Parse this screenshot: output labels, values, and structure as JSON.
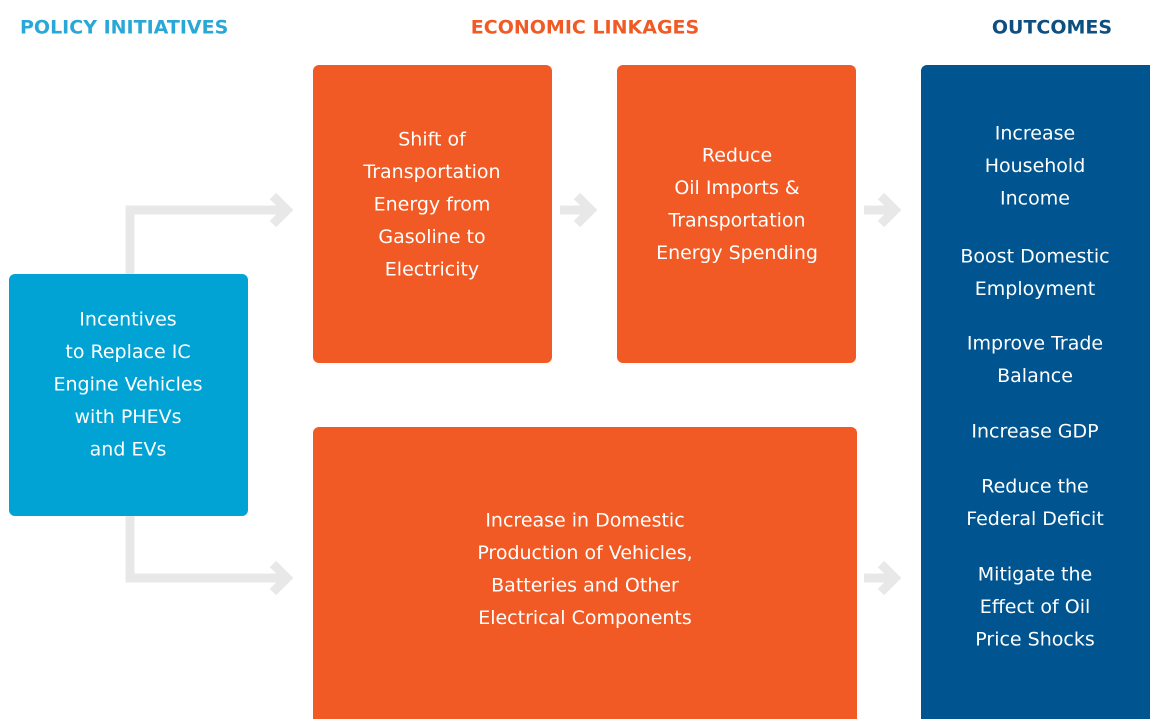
{
  "headers": {
    "policy": "POLICY INITIATIVES",
    "linkages": "ECONOMIC LINKAGES",
    "outcomes": "OUTCOMES"
  },
  "nodes": [
    {
      "lines": [
        "Incentives",
        "to Replace IC",
        "Engine Vehicles",
        "with PHEVs",
        "and EVs"
      ]
    },
    {
      "lines": [
        "Shift of",
        "Transportation",
        "Energy from",
        "Gasoline to",
        "Electricity"
      ]
    },
    {
      "lines": [
        "Reduce",
        "Oil Imports &",
        "Transportation",
        "Energy Spending"
      ]
    },
    {
      "lines": [
        "Increase in Domestic",
        "Production of Vehicles,",
        "Batteries and Other",
        "Electrical Components"
      ]
    }
  ],
  "outcomes": [
    {
      "lines": [
        "Increase",
        "Household",
        "Income"
      ]
    },
    {
      "lines": [
        "Boost Domestic",
        "Employment"
      ]
    },
    {
      "lines": [
        "Improve Trade",
        "Balance"
      ]
    },
    {
      "lines": [
        "Increase GDP"
      ]
    },
    {
      "lines": [
        "Reduce the",
        "Federal Deficit"
      ]
    },
    {
      "lines": [
        "Mitigate the",
        "Effect of Oil",
        "Price Shocks"
      ]
    }
  ]
}
